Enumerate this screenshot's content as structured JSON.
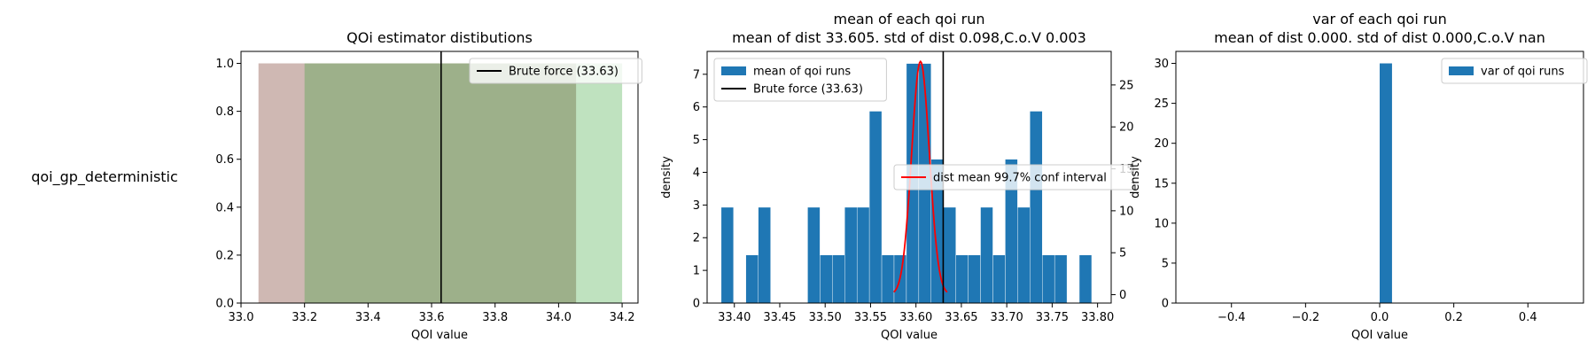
{
  "row_label": "qoi_gp_deterministic",
  "chart_data": [
    {
      "type": "area",
      "title": "QOi estimator distibutions",
      "xlabel": "QOI value",
      "ylabel": "",
      "xlim": [
        33.0,
        34.25
      ],
      "ylim": [
        0.0,
        1.05
      ],
      "xticks": [
        33.0,
        33.2,
        33.4,
        33.6,
        33.8,
        34.0,
        34.2
      ],
      "yticks": [
        0.0,
        0.2,
        0.4,
        0.6,
        0.8,
        1.0
      ],
      "bands": [
        {
          "x0": 33.055,
          "x1": 34.055,
          "value": 1.0,
          "color": "#8c564b",
          "opacity": 0.42
        },
        {
          "x0": 33.2,
          "x1": 34.2,
          "value": 1.0,
          "color": "#2ca02c",
          "opacity": 0.3
        }
      ],
      "vline": {
        "x": 33.63,
        "color": "#000000"
      },
      "legend": [
        {
          "label": "Brute force (33.63)",
          "kind": "line",
          "color": "#000000"
        }
      ],
      "legend_loc": "upper right",
      "grid": false
    },
    {
      "type": "bar",
      "title": "mean of each qoi run",
      "subtitle": "mean of dist 33.605. std of dist 0.098,C.o.V 0.003",
      "xlabel": "QOI value",
      "ylabel": "density",
      "xlim": [
        33.37,
        33.815
      ],
      "ylim": [
        0.0,
        7.7
      ],
      "xticks": [
        33.4,
        33.45,
        33.5,
        33.55,
        33.6,
        33.65,
        33.7,
        33.75,
        33.8
      ],
      "xtick_labels": [
        "33.40",
        "33.45",
        "33.50",
        "33.55",
        "33.60",
        "33.65",
        "33.70",
        "33.75",
        "33.80"
      ],
      "yticks": [
        0,
        1,
        2,
        3,
        4,
        5,
        6,
        7
      ],
      "bin_width": 0.0136,
      "bin_starts": [
        33.3855,
        33.4127,
        33.4263,
        33.4807,
        33.4943,
        33.5079,
        33.5215,
        33.5351,
        33.5487,
        33.5623,
        33.5759,
        33.5895,
        33.6031,
        33.6167,
        33.6303,
        33.6439,
        33.6575,
        33.6711,
        33.6847,
        33.6983,
        33.7119,
        33.7255,
        33.7391,
        33.7527,
        33.7799
      ],
      "values": [
        2.93,
        1.47,
        2.93,
        2.93,
        1.47,
        1.47,
        2.93,
        2.93,
        5.87,
        1.47,
        1.47,
        7.33,
        7.33,
        4.4,
        2.93,
        1.47,
        1.47,
        2.93,
        1.47,
        4.4,
        2.93,
        5.87,
        1.47,
        1.47,
        1.47
      ],
      "bar_color": "#1f77b4",
      "vline": {
        "x": 33.63,
        "color": "#000000"
      },
      "secondary_axis": {
        "ylim": [
          -1.0,
          29.0
        ],
        "yticks": [
          0,
          5,
          10,
          15,
          20,
          25
        ]
      },
      "curve": {
        "label": "dist mean 99.7% conf interval",
        "color": "#ff0000",
        "mean": 33.605,
        "sd": 0.0098,
        "peak": 27.8,
        "x_range": [
          33.5756,
          33.6344
        ]
      },
      "legend": [
        {
          "label": "mean of qoi runs",
          "kind": "patch",
          "color": "#1f77b4"
        },
        {
          "label": "Brute force (33.63)",
          "kind": "line",
          "color": "#000000"
        }
      ],
      "legend2": [
        {
          "label": "dist mean 99.7% conf interval",
          "kind": "line",
          "color": "#ff0000"
        }
      ],
      "legend_loc": "upper left",
      "grid": false
    },
    {
      "type": "bar",
      "title": "var of each qoi run",
      "subtitle": "mean of dist 0.000. std of dist 0.000,C.o.V nan",
      "xlabel": "QOI value",
      "ylabel": "density",
      "xlim": [
        -0.55,
        0.55
      ],
      "ylim": [
        0.0,
        31.5
      ],
      "xticks": [
        -0.4,
        -0.2,
        0.0,
        0.2,
        0.4
      ],
      "xtick_labels": [
        "−0.4",
        "−0.2",
        "0.0",
        "0.2",
        "0.4"
      ],
      "yticks": [
        0,
        5,
        10,
        15,
        20,
        25,
        30
      ],
      "bin_width": 0.0333,
      "bin_starts": [
        0.0
      ],
      "values": [
        30
      ],
      "bar_color": "#1f77b4",
      "legend": [
        {
          "label": "var of qoi runs",
          "kind": "patch",
          "color": "#1f77b4"
        }
      ],
      "legend_loc": "upper right",
      "grid": false
    }
  ]
}
